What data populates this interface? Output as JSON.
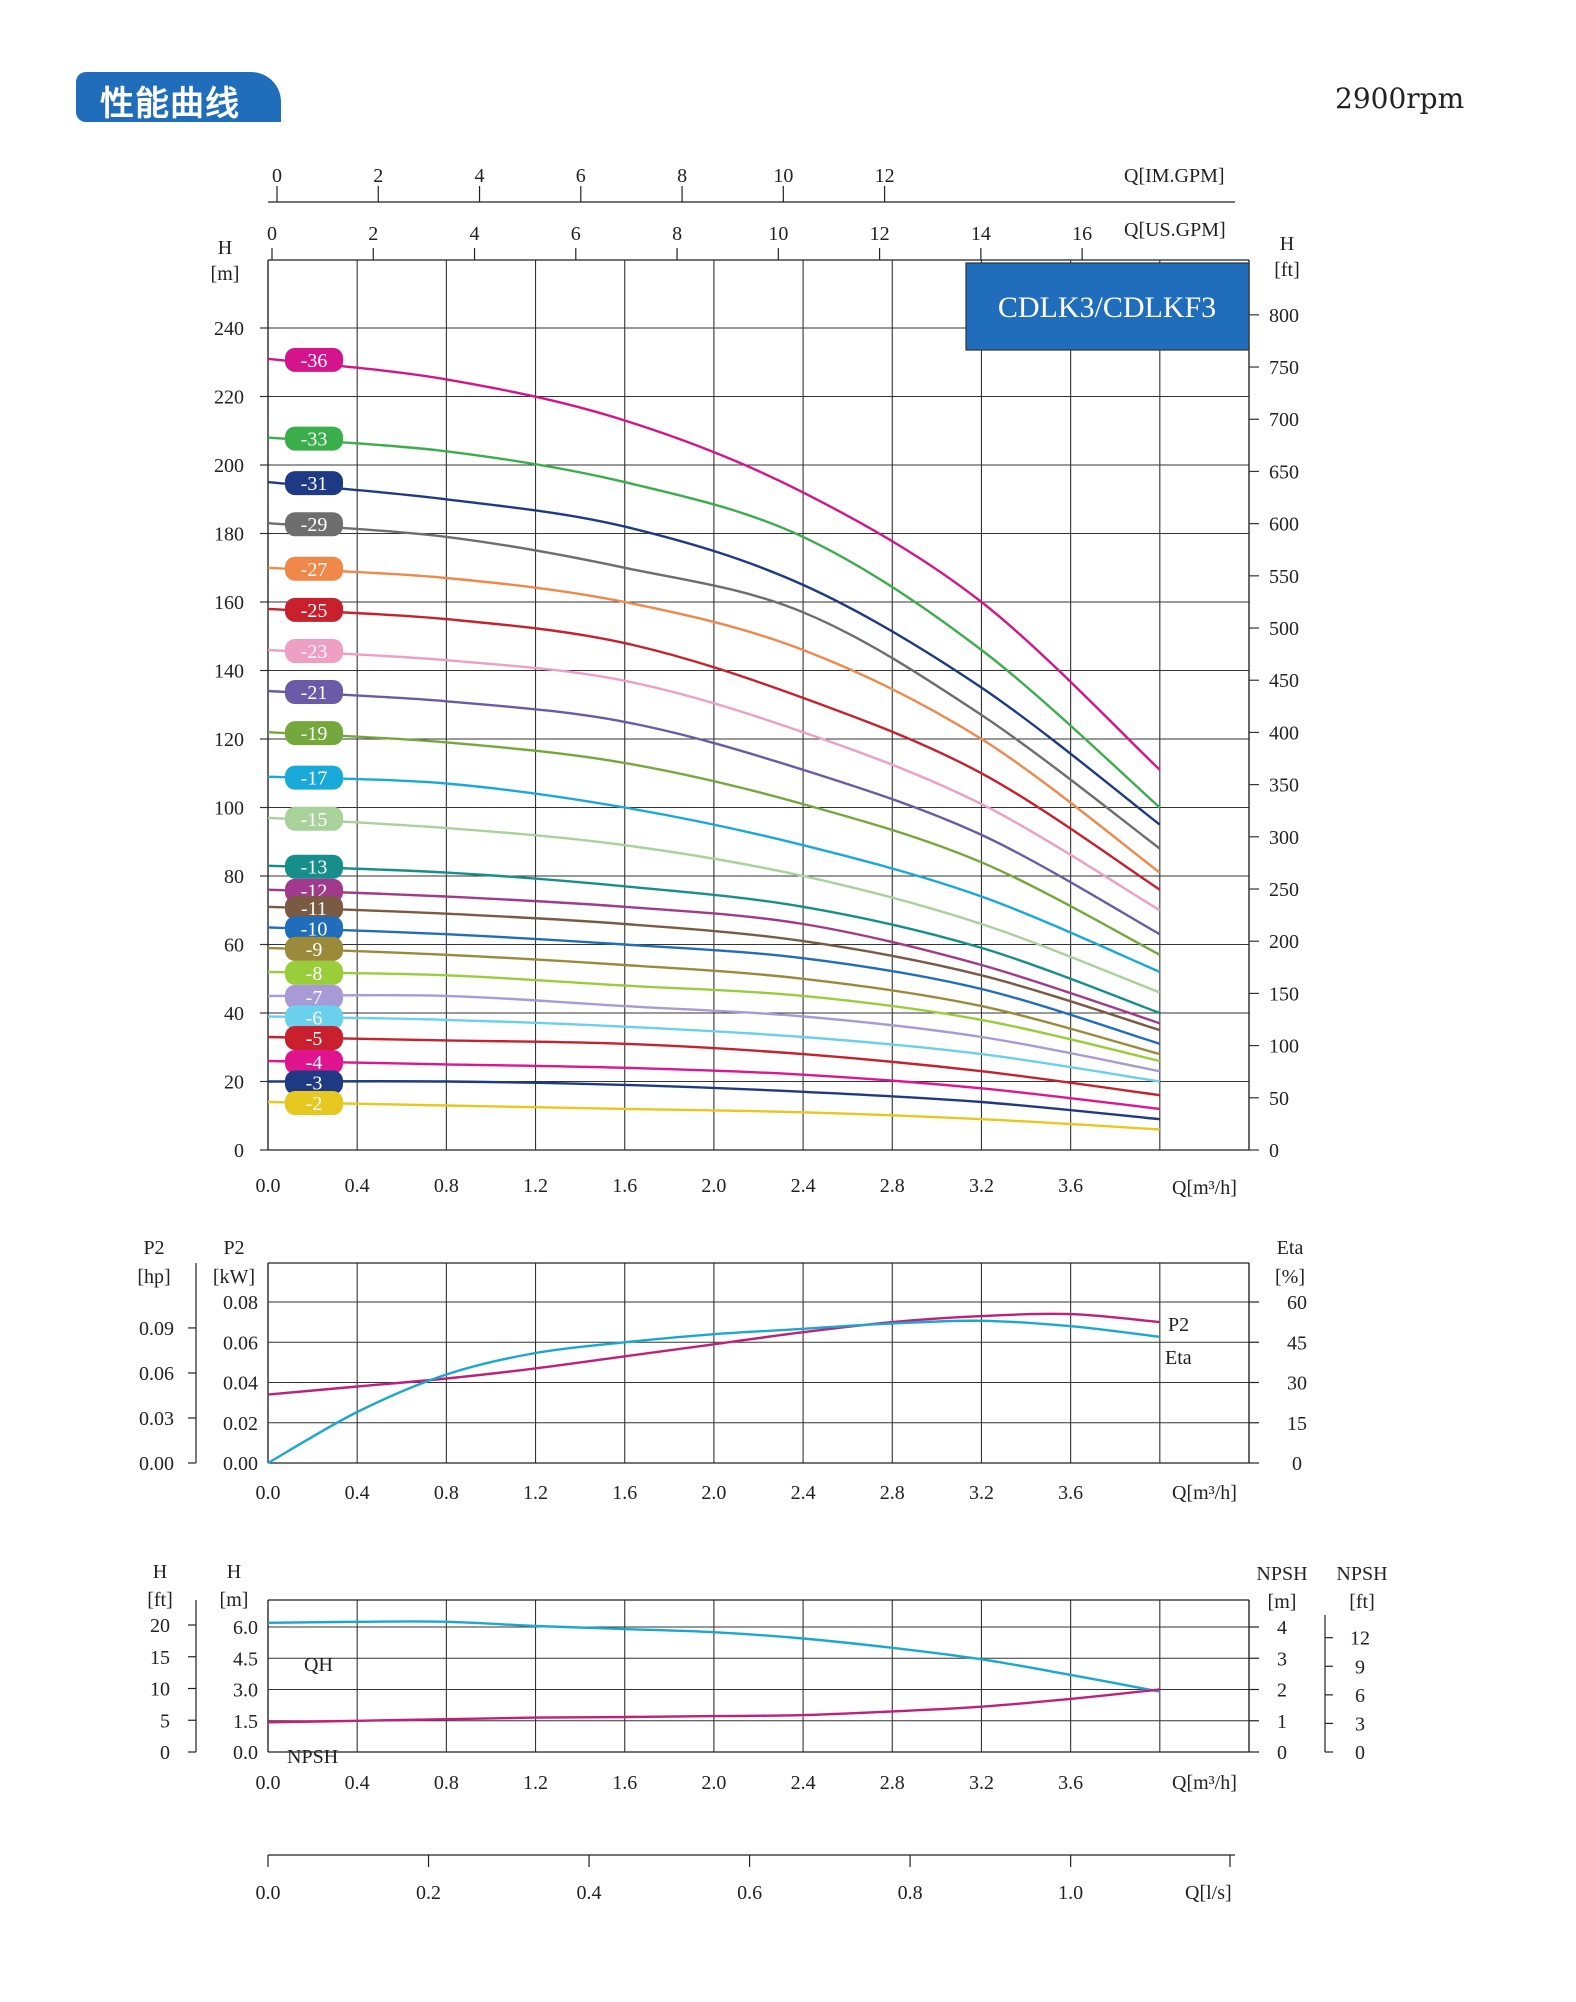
{
  "header": {
    "title": "性能曲线",
    "rpm": "2900rpm"
  },
  "chart_data": [
    {
      "type": "line",
      "title": "CDLK3/CDLKF3",
      "xlabel": "Q[m³/h]",
      "x_ticks": [
        "0.0",
        "0.4",
        "0.8",
        "1.2",
        "1.6",
        "2.0",
        "2.4",
        "2.8",
        "3.2",
        "3.6"
      ],
      "xlim": [
        0,
        4.4
      ],
      "ylabel_left": "H [m]",
      "ylim": [
        0,
        260
      ],
      "y_ticks_left": [
        "0",
        "20",
        "40",
        "60",
        "80",
        "100",
        "120",
        "140",
        "160",
        "180",
        "200",
        "220",
        "240"
      ],
      "ylabel_right": "H [ft]",
      "y_ticks_right": [
        "0",
        "50",
        "100",
        "150",
        "200",
        "250",
        "300",
        "350",
        "400",
        "450",
        "500",
        "550",
        "600",
        "650",
        "700",
        "750",
        "800"
      ],
      "top_axis_1": {
        "label": "Q[IM.GPM]",
        "ticks": [
          "0",
          "2",
          "4",
          "6",
          "8",
          "10",
          "12"
        ]
      },
      "top_axis_2": {
        "label": "Q[US.GPM]",
        "ticks": [
          "0",
          "2",
          "4",
          "6",
          "8",
          "10",
          "12",
          "14",
          "16"
        ]
      },
      "grid": true,
      "x": [
        0,
        0.8,
        1.6,
        2.4,
        3.2,
        4.0
      ],
      "series": [
        {
          "name": "-36",
          "color": "#d4148a",
          "values": [
            231,
            225,
            213,
            192,
            160,
            111
          ]
        },
        {
          "name": "-33",
          "color": "#3aae4a",
          "values": [
            208,
            204,
            195,
            179,
            146,
            100
          ]
        },
        {
          "name": "-31",
          "color": "#1e3a85",
          "values": [
            195,
            190,
            182,
            165,
            135,
            95
          ]
        },
        {
          "name": "-29",
          "color": "#6e6e6e",
          "values": [
            183,
            179,
            170,
            157,
            127,
            88
          ]
        },
        {
          "name": "-27",
          "color": "#f0884a",
          "values": [
            170,
            167,
            160,
            146,
            120,
            81
          ]
        },
        {
          "name": "-25",
          "color": "#c8202c",
          "values": [
            158,
            155,
            148,
            132,
            110,
            76
          ]
        },
        {
          "name": "-23",
          "color": "#ef9ec4",
          "values": [
            146,
            143,
            137,
            122,
            101,
            70
          ]
        },
        {
          "name": "-21",
          "color": "#6a5aa8",
          "values": [
            134,
            131,
            125,
            111,
            92,
            63
          ]
        },
        {
          "name": "-19",
          "color": "#74a83c",
          "values": [
            122,
            119,
            113,
            101,
            84,
            57
          ]
        },
        {
          "name": "-17",
          "color": "#19a9d9",
          "values": [
            109,
            107,
            100,
            89,
            74,
            52
          ]
        },
        {
          "name": "-15",
          "color": "#a8d29a",
          "values": [
            97,
            94,
            89,
            80,
            66,
            46
          ]
        },
        {
          "name": "-13",
          "color": "#168f8a",
          "values": [
            83,
            81,
            77,
            71,
            59,
            40
          ]
        },
        {
          "name": "-12",
          "color": "#a13a8c",
          "values": [
            76,
            74,
            71,
            66,
            54,
            37
          ]
        },
        {
          "name": "-11",
          "color": "#7b5a44",
          "values": [
            71,
            69,
            66,
            61,
            51,
            35
          ]
        },
        {
          "name": "-10",
          "color": "#1f6dbb",
          "values": [
            65,
            63,
            60,
            56,
            47,
            31
          ]
        },
        {
          "name": "-9",
          "color": "#9a8a3a",
          "values": [
            59,
            57,
            54,
            50,
            42,
            28
          ]
        },
        {
          "name": "-8",
          "color": "#9acd3a",
          "values": [
            52,
            51,
            48,
            45,
            38,
            26
          ]
        },
        {
          "name": "-7",
          "color": "#a89ad6",
          "values": [
            45,
            45,
            42,
            39,
            33,
            23
          ]
        },
        {
          "name": "-6",
          "color": "#6ad0ec",
          "values": [
            39,
            38,
            36,
            33,
            28,
            20
          ]
        },
        {
          "name": "-5",
          "color": "#c8202c",
          "values": [
            33,
            32,
            31,
            28,
            23,
            16
          ]
        },
        {
          "name": "-4",
          "color": "#e0148c",
          "values": [
            26,
            25,
            24,
            22,
            18,
            12
          ]
        },
        {
          "name": "-3",
          "color": "#1e3a85",
          "values": [
            20,
            20,
            19,
            17,
            14,
            9
          ]
        },
        {
          "name": "-2",
          "color": "#e6c81e",
          "values": [
            14,
            13,
            12,
            11,
            9,
            6
          ]
        }
      ]
    },
    {
      "type": "line",
      "xlabel": "Q[m³/h]",
      "x_ticks": [
        "0.0",
        "0.4",
        "0.8",
        "1.2",
        "1.6",
        "2.0",
        "2.4",
        "2.8",
        "3.2",
        "3.6"
      ],
      "xlim": [
        0,
        4.4
      ],
      "ylabel_left_outer": "P2 [hp]",
      "y_ticks_left_outer": [
        "0.00",
        "0.03",
        "0.06",
        "0.09"
      ],
      "ylabel_left": "P2 [kW]",
      "y_ticks_left": [
        "0.00",
        "0.02",
        "0.04",
        "0.06",
        "0.08"
      ],
      "ylim_left": [
        0,
        0.08
      ],
      "ylabel_right": "Eta [%]",
      "y_ticks_right": [
        "0",
        "15",
        "30",
        "45",
        "60"
      ],
      "ylim_right": [
        0,
        60
      ],
      "grid": true,
      "x": [
        0,
        0.4,
        0.8,
        1.2,
        1.6,
        2.0,
        2.4,
        2.8,
        3.2,
        3.6,
        4.0
      ],
      "series": [
        {
          "name": "P2",
          "color": "#c0207a",
          "axis": "left",
          "values": [
            0.034,
            0.038,
            0.042,
            0.047,
            0.053,
            0.059,
            0.065,
            0.07,
            0.073,
            0.074,
            0.07
          ]
        },
        {
          "name": "Eta",
          "color": "#1ba8d0",
          "axis": "right",
          "values": [
            0,
            19,
            33,
            41,
            45,
            48,
            50,
            52,
            53,
            51,
            47
          ]
        }
      ]
    },
    {
      "type": "line",
      "xlabel": "Q[m³/h]",
      "x_ticks": [
        "0.0",
        "0.4",
        "0.8",
        "1.2",
        "1.6",
        "2.0",
        "2.4",
        "2.8",
        "3.2",
        "3.6"
      ],
      "xlim": [
        0,
        4.4
      ],
      "ylabel_left_outer": "H [ft]",
      "y_ticks_left_outer": [
        "0",
        "5",
        "10",
        "15",
        "20"
      ],
      "ylabel_left": "H [m]",
      "y_ticks_left": [
        "0.0",
        "1.5",
        "3.0",
        "4.5",
        "6.0"
      ],
      "ylim_left": [
        0,
        6
      ],
      "ylabel_right": "NPSH [m]",
      "y_ticks_right": [
        "0",
        "1",
        "2",
        "3",
        "4"
      ],
      "ylim_right": [
        0,
        4
      ],
      "ylabel_right_outer": "NPSH [ft]",
      "y_ticks_right_outer": [
        "0",
        "3",
        "6",
        "9",
        "12"
      ],
      "grid": true,
      "x": [
        0,
        0.4,
        0.8,
        1.2,
        1.6,
        2.0,
        2.4,
        2.8,
        3.2,
        3.6,
        4.0
      ],
      "series": [
        {
          "name": "QH",
          "color": "#1ba8d0",
          "axis": "left",
          "values": [
            6.2,
            6.25,
            6.25,
            6.05,
            5.9,
            5.75,
            5.45,
            5.0,
            4.45,
            3.7,
            2.9
          ]
        },
        {
          "name": "NPSH",
          "color": "#c0207a",
          "axis": "right",
          "values": [
            0.95,
            1.0,
            1.05,
            1.1,
            1.12,
            1.15,
            1.18,
            1.3,
            1.45,
            1.7,
            2.0
          ]
        }
      ]
    },
    {
      "type": "axis",
      "xlabel": "Q[l/s]",
      "x_ticks": [
        "0.0",
        "0.2",
        "0.4",
        "0.6",
        "0.8",
        "1.0"
      ]
    }
  ]
}
